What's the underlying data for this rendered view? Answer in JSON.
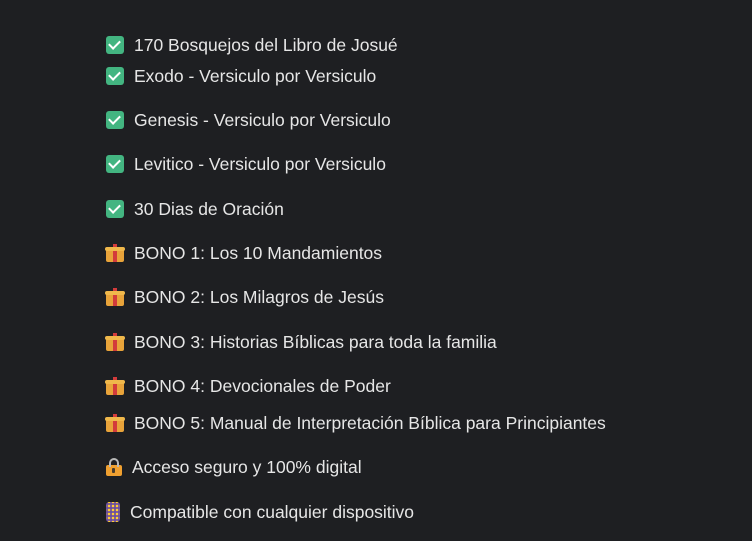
{
  "items": [
    {
      "icon": "check-box-icon",
      "label": "170 Bosquejos del Libro de Josué"
    },
    {
      "icon": "check-box-icon",
      "label": "Exodo - Versiculo por Versiculo"
    },
    {
      "icon": "check-box-icon",
      "label": "Genesis - Versiculo por Versiculo"
    },
    {
      "icon": "check-box-icon",
      "label": "Levitico - Versiculo por Versiculo"
    },
    {
      "icon": "check-box-icon",
      "label": "30 Dias de Oración"
    },
    {
      "icon": "gift-icon",
      "label": "BONO 1: Los 10 Mandamientos"
    },
    {
      "icon": "gift-icon",
      "label": "BONO 2: Los Milagros de Jesús"
    },
    {
      "icon": "gift-icon",
      "label": "BONO 3: Historias Bíblicas para toda la familia"
    },
    {
      "icon": "gift-icon",
      "label": "BONO 4: Devocionales de Poder"
    },
    {
      "icon": "gift-icon",
      "label": "BONO 5: Manual de Interpretación Bíblica para Principiantes"
    },
    {
      "icon": "lock-icon",
      "label": "Acceso seguro y 100% digital"
    },
    {
      "icon": "mobile-phone-icon",
      "label": "Compatible con cualquier dispositivo"
    }
  ]
}
